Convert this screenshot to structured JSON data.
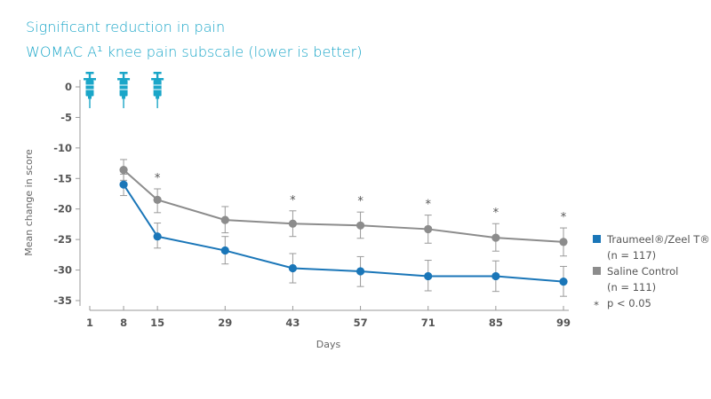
{
  "header": {
    "title": "Significant reduction in pain",
    "subtitle": "WOMAC A¹ knee pain subscale (lower is better)"
  },
  "chart_data": {
    "type": "line",
    "title": "Significant reduction in pain",
    "subtitle": "WOMAC A¹ knee pain subscale (lower is better)",
    "xlabel": "Days",
    "ylabel": "Mean change in score",
    "x_ticks": [
      1,
      8,
      15,
      29,
      43,
      57,
      71,
      85,
      99
    ],
    "y_ticks": [
      0,
      -5,
      -10,
      -15,
      -20,
      -25,
      -30,
      -35
    ],
    "ylim": [
      -35,
      0
    ],
    "xlim": [
      1,
      99
    ],
    "injection_days": [
      1,
      8,
      15
    ],
    "injection_icon": "syringe-icon",
    "significant_days": [
      15,
      43,
      57,
      71,
      85,
      99
    ],
    "series": [
      {
        "name": "Traumeel®/Zeel T®",
        "n_label": "(n = 117)",
        "color": "#1a76b8",
        "x": [
          8,
          15,
          29,
          43,
          57,
          71,
          85,
          99
        ],
        "values": [
          -16.0,
          -24.5,
          -26.8,
          -29.7,
          -30.2,
          -31.0,
          -31.0,
          -31.9
        ],
        "err_low": [
          -17.8,
          -26.4,
          -29.0,
          -32.1,
          -32.7,
          -33.4,
          -33.5,
          -34.3
        ],
        "err_high": [
          -14.3,
          -22.3,
          -24.5,
          -27.3,
          -27.8,
          -28.4,
          -28.5,
          -29.4
        ]
      },
      {
        "name": "Saline Control",
        "n_label": "(n = 111)",
        "color": "#8c8c8c",
        "x": [
          8,
          15,
          29,
          43,
          57,
          71,
          85,
          99
        ],
        "values": [
          -13.6,
          -18.5,
          -21.8,
          -22.4,
          -22.7,
          -23.3,
          -24.7,
          -25.4
        ],
        "err_low": [
          -15.3,
          -20.6,
          -23.9,
          -24.5,
          -24.8,
          -25.6,
          -26.9,
          -27.7
        ],
        "err_high": [
          -11.9,
          -16.7,
          -19.6,
          -20.3,
          -20.5,
          -21.0,
          -22.4,
          -23.1
        ]
      }
    ],
    "legend": {
      "position": "right",
      "significance_marker": "*",
      "significance_label": "p < 0.05"
    },
    "colors": {
      "title": "#1aa6c8",
      "syringe": "#1aa6c8",
      "text": "#555555",
      "axis": "#9a9a9a"
    }
  }
}
